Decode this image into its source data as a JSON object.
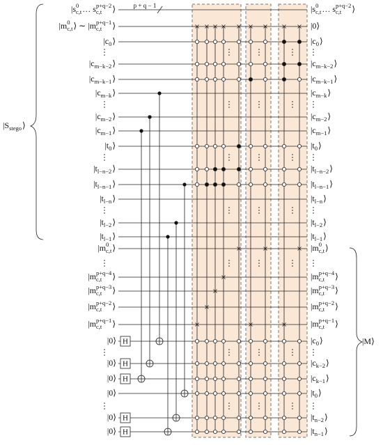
{
  "bundle_label": "p + q − 1",
  "left_brace_label": [
    {
      "text": "|S"
    },
    {
      "sub": "stego"
    },
    {
      "text": "⟩"
    }
  ],
  "right_brace_label": [
    {
      "text": "|M⟩"
    }
  ],
  "gate_label": "H",
  "rows": [
    {
      "left": [
        {
          "text": "|s"
        },
        {
          "sup": "0",
          "sub": "c,t"
        },
        {
          "text": " … s"
        },
        {
          "sup": "p+q−2",
          "sub": "c,t"
        },
        {
          "text": "⟩"
        }
      ],
      "right": [
        {
          "text": "|s"
        },
        {
          "sup": "0",
          "sub": "c,t"
        },
        {
          "text": " … s"
        },
        {
          "sup": "p+q−2",
          "sub": "c,t"
        },
        {
          "text": "⟩"
        }
      ]
    },
    {
      "left": [
        {
          "text": "|m"
        },
        {
          "sup": "0",
          "sub": "c,t"
        },
        {
          "text": "⟩ ∼ |m"
        },
        {
          "sup": "p+q−1",
          "sub": "c,t"
        },
        {
          "text": "⟩"
        }
      ],
      "right": [
        {
          "text": "|0⟩"
        }
      ]
    },
    {
      "left": [
        {
          "text": "|c"
        },
        {
          "sub": "0"
        },
        {
          "text": "⟩"
        }
      ],
      "right": [
        {
          "text": "|c"
        },
        {
          "sub": "0"
        },
        {
          "text": "⟩"
        }
      ]
    },
    {
      "left": [
        {
          "text": "|c"
        },
        {
          "sub": "m−k−2"
        },
        {
          "text": "⟩"
        }
      ],
      "right": [
        {
          "text": "|c"
        },
        {
          "sub": "m−k−2"
        },
        {
          "text": "⟩"
        }
      ]
    },
    {
      "left": [
        {
          "text": "|c"
        },
        {
          "sub": "m−k−1"
        },
        {
          "text": "⟩"
        }
      ],
      "right": [
        {
          "text": "|c"
        },
        {
          "sub": "m−k−1"
        },
        {
          "text": "⟩"
        }
      ]
    },
    {
      "left": [
        {
          "text": "|c"
        },
        {
          "sub": "m−k"
        },
        {
          "text": "⟩"
        }
      ],
      "right": [
        {
          "text": "|c"
        },
        {
          "sub": "m−k"
        },
        {
          "text": "⟩"
        }
      ]
    },
    {
      "left": [
        {
          "text": "|c"
        },
        {
          "sub": "m−2"
        },
        {
          "text": "⟩"
        }
      ],
      "right": [
        {
          "text": "|c"
        },
        {
          "sub": "m−2"
        },
        {
          "text": "⟩"
        }
      ]
    },
    {
      "left": [
        {
          "text": "|c"
        },
        {
          "sub": "m−1"
        },
        {
          "text": "⟩"
        }
      ],
      "right": [
        {
          "text": "|c"
        },
        {
          "sub": "m−1"
        },
        {
          "text": "⟩"
        }
      ]
    },
    {
      "left": [
        {
          "text": "|t"
        },
        {
          "sub": "0"
        },
        {
          "text": "⟩"
        }
      ],
      "right": [
        {
          "text": "|t"
        },
        {
          "sub": "0"
        },
        {
          "text": "⟩"
        }
      ]
    },
    {
      "left": [
        {
          "text": "|t"
        },
        {
          "sub": "l−n−2"
        },
        {
          "text": "⟩"
        }
      ],
      "right": [
        {
          "text": "|t"
        },
        {
          "sub": "l−n−2"
        },
        {
          "text": "⟩"
        }
      ]
    },
    {
      "left": [
        {
          "text": "|t"
        },
        {
          "sub": "l−n−1"
        },
        {
          "text": "⟩"
        }
      ],
      "right": [
        {
          "text": "|t"
        },
        {
          "sub": "l−n−1"
        },
        {
          "text": "⟩"
        }
      ]
    },
    {
      "left": [
        {
          "text": "|t"
        },
        {
          "sub": "l−n"
        },
        {
          "text": "⟩"
        }
      ],
      "right": [
        {
          "text": "|t"
        },
        {
          "sub": "l−n"
        },
        {
          "text": "⟩"
        }
      ]
    },
    {
      "left": [
        {
          "text": "|t"
        },
        {
          "sub": "l−2"
        },
        {
          "text": "⟩"
        }
      ],
      "right": [
        {
          "text": "|t"
        },
        {
          "sub": "l−2"
        },
        {
          "text": "⟩"
        }
      ]
    },
    {
      "left": [
        {
          "text": "|t"
        },
        {
          "sub": "l−1"
        },
        {
          "text": "⟩"
        }
      ],
      "right": [
        {
          "text": "|t"
        },
        {
          "sub": "l−1"
        },
        {
          "text": "⟩"
        }
      ]
    },
    {
      "left": [
        {
          "text": "|m"
        },
        {
          "sup": "0",
          "sub": "c,t"
        },
        {
          "text": "⟩"
        }
      ],
      "right": [
        {
          "text": "|m"
        },
        {
          "sup": "0",
          "sub": "c,t"
        },
        {
          "text": "⟩"
        }
      ]
    },
    {
      "left": [
        {
          "text": "|m"
        },
        {
          "sup": "p+q−4",
          "sub": "c,t"
        },
        {
          "text": "⟩"
        }
      ],
      "right": [
        {
          "text": "|m"
        },
        {
          "sup": "p+q−4",
          "sub": "c,t"
        },
        {
          "text": "⟩"
        }
      ]
    },
    {
      "left": [
        {
          "text": "|m"
        },
        {
          "sup": "p+q−3",
          "sub": "c,t"
        },
        {
          "text": "⟩"
        }
      ],
      "right": [
        {
          "text": "|m"
        },
        {
          "sup": "p+q−3",
          "sub": "c,t"
        },
        {
          "text": "⟩"
        }
      ]
    },
    {
      "left": [
        {
          "text": "|m"
        },
        {
          "sup": "p+q−2",
          "sub": "c,t"
        },
        {
          "text": "⟩"
        }
      ],
      "right": [
        {
          "text": "|m"
        },
        {
          "sup": "p+q−2",
          "sub": "c,t"
        },
        {
          "text": "⟩"
        }
      ]
    },
    {
      "left": [
        {
          "text": "|m"
        },
        {
          "sup": "p+q−1",
          "sub": "c,t"
        },
        {
          "text": "⟩"
        }
      ],
      "right": [
        {
          "text": "|m"
        },
        {
          "sup": "p+q−1",
          "sub": "c,t"
        },
        {
          "text": "⟩"
        }
      ]
    },
    {
      "left": [
        {
          "text": "|0⟩"
        }
      ],
      "right": [
        {
          "text": "|c"
        },
        {
          "sub": "0"
        },
        {
          "text": "⟩"
        }
      ]
    },
    {
      "left": [
        {
          "text": "|0⟩"
        }
      ],
      "right": [
        {
          "text": "|c"
        },
        {
          "sub": "k−2"
        },
        {
          "text": "⟩"
        }
      ]
    },
    {
      "left": [
        {
          "text": "|0⟩"
        }
      ],
      "right": [
        {
          "text": "|c"
        },
        {
          "sub": "k−1"
        },
        {
          "text": "⟩"
        }
      ]
    },
    {
      "left": [
        {
          "text": "|0⟩"
        }
      ],
      "right": [
        {
          "text": "|t"
        },
        {
          "sub": "0"
        },
        {
          "text": "⟩"
        }
      ]
    },
    {
      "left": [
        {
          "text": "|0⟩"
        }
      ],
      "right": [
        {
          "text": "|t"
        },
        {
          "sub": "n−2"
        },
        {
          "text": "⟩"
        }
      ]
    },
    {
      "left": [
        {
          "text": "|0⟩"
        }
      ],
      "right": [
        {
          "text": "|t"
        },
        {
          "sub": "n−1"
        },
        {
          "text": "⟩"
        }
      ]
    }
  ]
}
